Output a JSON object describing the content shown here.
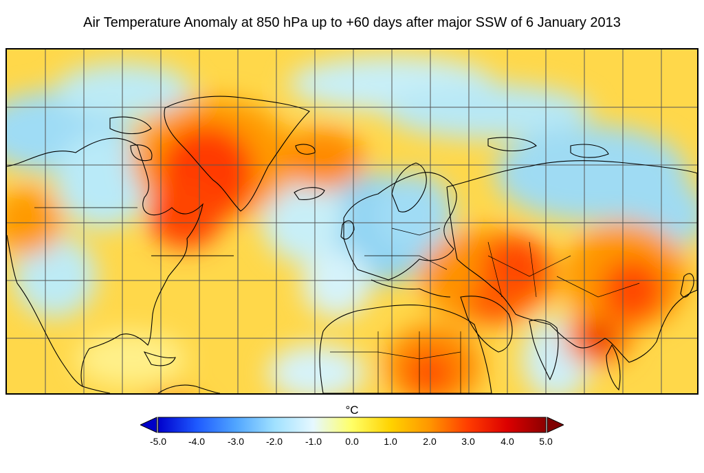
{
  "title": "Air Temperature Anomaly at 850 hPa up to +60 days after major SSW of 6 January 2013",
  "colorbar": {
    "unit": "°C",
    "min": -5.0,
    "max": 5.0,
    "ticks": [
      "-5.0",
      "-4.0",
      "-3.0",
      "-2.0",
      "-1.0",
      "0.0",
      "1.0",
      "2.0",
      "3.0",
      "4.0",
      "5.0"
    ],
    "extend_colors": {
      "low": "#0000c8",
      "high": "#800000"
    },
    "stops": [
      "#0000cc",
      "#1e5aff",
      "#50a5ff",
      "#a0e1ff",
      "#e6f8ff",
      "#ffff66",
      "#ffd200",
      "#ff9600",
      "#ff3c00",
      "#dc0000",
      "#8c0000"
    ]
  },
  "map": {
    "projection": "equirectangular",
    "lon_range": [
      -140,
      150
    ],
    "lat_range": [
      -5,
      83
    ],
    "gridlines": true,
    "coastlines": true,
    "field": "air temperature anomaly",
    "level": "850 hPa",
    "hot_spots": [
      "Greenland / Labrador",
      "Baffin Bay",
      "Iran / Afghanistan",
      "Central Asia",
      "Eastern China",
      "Bangladesh / Myanmar",
      "Sahara / Sahel"
    ],
    "cold_spots": [
      "Europe",
      "Northern Siberia",
      "Western Pacific (mid-latitudes)",
      "Eastern Pacific",
      "Arctic Ocean"
    ]
  }
}
